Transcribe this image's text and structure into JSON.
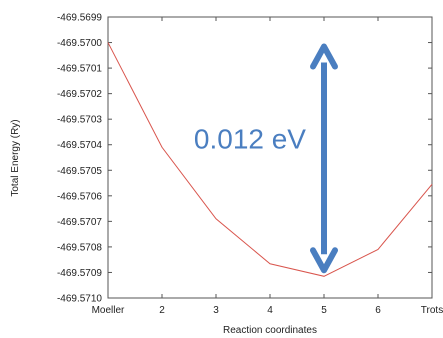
{
  "chart_data": {
    "type": "line",
    "categories": [
      "Moeller",
      "2",
      "3",
      "4",
      "5",
      "6",
      "Trots"
    ],
    "series": [
      {
        "values": [
          -469.57,
          -469.57041,
          -469.57069,
          -469.570866,
          -469.570915,
          -469.57081,
          -469.570555
        ]
      }
    ],
    "xlabel": "Reaction coordinates",
    "ylabel": "Total Energy (Ry)",
    "ylim": [
      -469.571,
      -469.5699
    ],
    "yticks": [
      "-469.5699",
      "-469.5700",
      "-469.5701",
      "-469.5702",
      "-469.5703",
      "-469.5704",
      "-469.5705",
      "-469.5706",
      "-469.5707",
      "-469.5708",
      "-469.5709",
      "-469.5710"
    ],
    "grid": false,
    "line_color": "#d9554d",
    "annotation": {
      "text": "0.012 eV",
      "color": "#4a7ec0",
      "from_value": -469.57,
      "to_value": -469.570915,
      "at_category": "5"
    }
  }
}
